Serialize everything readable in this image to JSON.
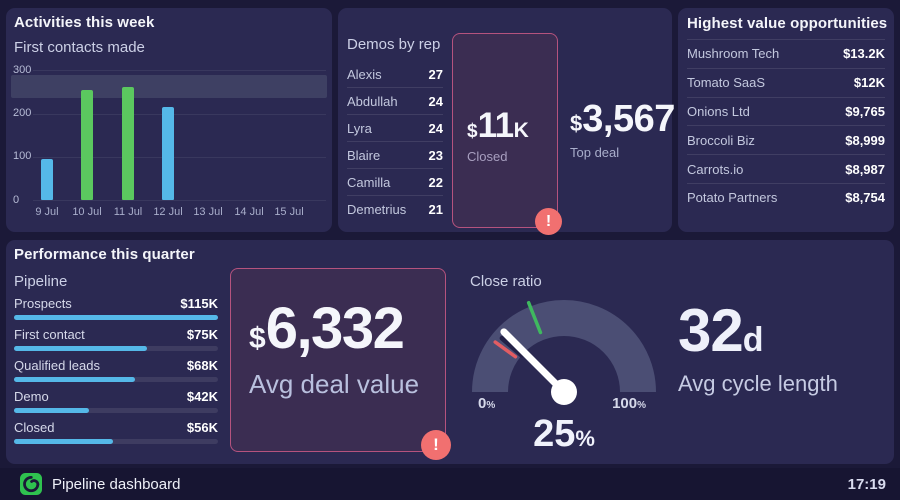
{
  "colors": {
    "page_bg": "#1b1938",
    "panel_bg": "#2b2952",
    "footer_bg": "#171532",
    "bar_blue": "#55b8e8",
    "bar_green": "#5bc85f",
    "goal_band": "#3e4063",
    "alert_box_bg": "#3b2d52",
    "alert_box_border": "#b5537e",
    "alert_badge_bg": "#f17070",
    "gauge_arc": "#4b4e74",
    "gauge_red_marker": "#e25d63",
    "gauge_green_marker": "#3fb95f",
    "logo_green": "#2fc24f"
  },
  "alert": {
    "icon": "!"
  },
  "activities": {
    "title": "Activities this week"
  },
  "demos": {
    "title": "Demos by rep",
    "rows": [
      {
        "name": "Alexis",
        "value": "27"
      },
      {
        "name": "Abdullah",
        "value": "24"
      },
      {
        "name": "Lyra",
        "value": "24"
      },
      {
        "name": "Blaire",
        "value": "23"
      },
      {
        "name": "Camilla",
        "value": "22"
      },
      {
        "name": "Demetrius",
        "value": "21"
      }
    ]
  },
  "closed_stat": {
    "currency": "$",
    "value": "11",
    "suffix": "K",
    "label": "Closed"
  },
  "top_deal": {
    "currency": "$",
    "value": "3,567",
    "label": "Top deal"
  },
  "opportunities": {
    "title": "Highest value opportunities",
    "rows": [
      {
        "name": "Mushroom Tech",
        "value": "$13.2K"
      },
      {
        "name": "Tomato SaaS",
        "value": "$12K"
      },
      {
        "name": "Onions Ltd",
        "value": "$9,765"
      },
      {
        "name": "Broccoli Biz",
        "value": "$8,999"
      },
      {
        "name": "Carrots.io",
        "value": "$8,987"
      },
      {
        "name": "Potato Partners",
        "value": "$8,754"
      }
    ]
  },
  "performance": {
    "title": "Performance this quarter",
    "avg_deal": {
      "currency": "$",
      "value": "6,332",
      "label": "Avg deal value"
    },
    "cycle": {
      "value": "32",
      "unit": "d",
      "label": "Avg cycle length"
    }
  },
  "footer": {
    "brand": "Pipeline dashboard",
    "time": "17:19"
  },
  "chart_data": [
    {
      "type": "bar",
      "title": "First contacts made",
      "categories": [
        "9 Jul",
        "10 Jul",
        "11 Jul",
        "12 Jul",
        "13 Jul",
        "14 Jul",
        "15 Jul"
      ],
      "values": [
        95,
        255,
        262,
        215,
        0,
        0,
        0
      ],
      "bar_colors": [
        "#55b8e8",
        "#5bc85f",
        "#5bc85f",
        "#55b8e8",
        null,
        null,
        null
      ],
      "ylim": [
        0,
        300
      ],
      "yticks": [
        0,
        100,
        200,
        300
      ],
      "goal_band": [
        235,
        290
      ],
      "grid": true,
      "legend": false
    },
    {
      "type": "bar",
      "orientation": "horizontal",
      "title": "Pipeline",
      "categories": [
        "Prospects",
        "First contact",
        "Qualified leads",
        "Demo",
        "Closed"
      ],
      "values": [
        115,
        75,
        68,
        42,
        56
      ],
      "value_labels": [
        "$115K",
        "$75K",
        "$68K",
        "$42K",
        "$56K"
      ],
      "xlim": [
        0,
        115
      ],
      "unit": "$K"
    },
    {
      "type": "gauge",
      "title": "Close ratio",
      "value": 25,
      "min": 0,
      "max": 100,
      "unit": "%",
      "value_label": "25",
      "min_label": "0",
      "max_label": "100",
      "markers": [
        {
          "color": "red",
          "value": 20
        },
        {
          "color": "green",
          "value": 38
        }
      ]
    }
  ]
}
